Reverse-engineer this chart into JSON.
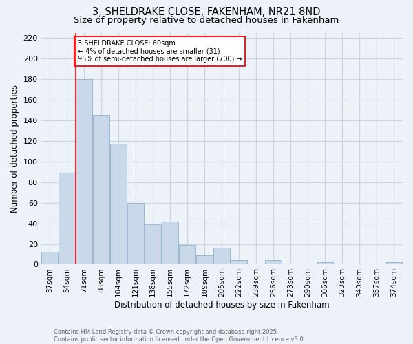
{
  "title": "3, SHELDRAKE CLOSE, FAKENHAM, NR21 8ND",
  "subtitle": "Size of property relative to detached houses in Fakenham",
  "xlabel": "Distribution of detached houses by size in Fakenham",
  "ylabel": "Number of detached properties",
  "bar_labels": [
    "37sqm",
    "54sqm",
    "71sqm",
    "88sqm",
    "104sqm",
    "121sqm",
    "138sqm",
    "155sqm",
    "172sqm",
    "189sqm",
    "205sqm",
    "222sqm",
    "239sqm",
    "256sqm",
    "273sqm",
    "290sqm",
    "306sqm",
    "323sqm",
    "340sqm",
    "357sqm",
    "374sqm"
  ],
  "bar_values": [
    12,
    89,
    180,
    145,
    117,
    60,
    39,
    42,
    19,
    9,
    16,
    4,
    0,
    4,
    0,
    0,
    2,
    0,
    0,
    0,
    2
  ],
  "bar_color": "#c9d9ea",
  "bar_edge_color": "#9ab8d0",
  "grid_color": "#c8d4e4",
  "background_color": "#edf1f8",
  "red_line_x": 1.5,
  "annotation_text": "3 SHELDRAKE CLOSE: 60sqm\n← 4% of detached houses are smaller (31)\n95% of semi-detached houses are larger (700) →",
  "annotation_box_color": "white",
  "annotation_box_edge_color": "red",
  "ylim": [
    0,
    225
  ],
  "yticks": [
    0,
    20,
    40,
    60,
    80,
    100,
    120,
    140,
    160,
    180,
    200,
    220
  ],
  "footer_text": "Contains HM Land Registry data © Crown copyright and database right 2025.\nContains public sector information licensed under the Open Government Licence v3.0.",
  "title_fontsize": 10.5,
  "subtitle_fontsize": 9.5,
  "tick_fontsize": 7.5,
  "ylabel_fontsize": 8.5,
  "xlabel_fontsize": 8.5,
  "footer_fontsize": 6.0
}
